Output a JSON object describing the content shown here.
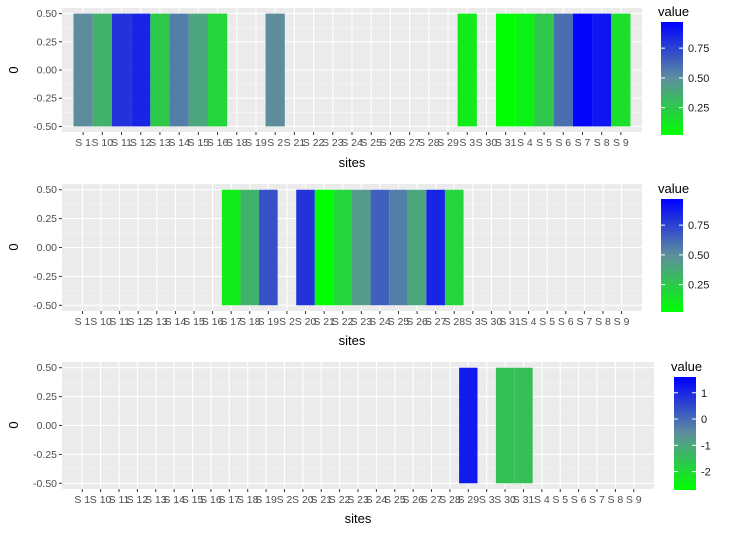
{
  "chart_data": [
    {
      "type": "heatmap",
      "xlabel": "sites",
      "ylabel": "0",
      "x": [
        "S 1",
        "S 10",
        "S 11",
        "S 12",
        "S 13",
        "S 14",
        "S 15",
        "S 16",
        "S 18",
        "S 19",
        "S 2",
        "S 21",
        "S 22",
        "S 23",
        "S 24",
        "S 25",
        "S 26",
        "S 27",
        "S 28",
        "S 29",
        "S 3",
        "S 30",
        "S 31",
        "S 4",
        "S 5",
        "S 6",
        "S 7",
        "S 8",
        "S 9"
      ],
      "x_tick_labels": [
        "S 1",
        "S 10",
        "S 11",
        "S 12",
        "S 13",
        "S 14",
        "S 15",
        "S 16",
        "S 18",
        "S 19",
        "S 2",
        "S 21",
        "S 22",
        "S 23",
        "S 24",
        "S 25",
        "S 26",
        "S 27",
        "S 28",
        "S 29",
        "S 3",
        "S 30",
        "S 31",
        "S 4",
        "S 5",
        "S 6",
        "S 7",
        "S 8",
        "S 9"
      ],
      "ylim": [
        -0.5,
        0.5
      ],
      "y_ticks": [
        "0.50",
        "0.25",
        "0.00",
        "-0.25",
        "-0.50"
      ],
      "values": [
        0.5,
        0.35,
        0.8,
        0.85,
        0.25,
        0.55,
        0.4,
        0.2,
        null,
        null,
        0.5,
        null,
        null,
        null,
        null,
        null,
        null,
        null,
        null,
        null,
        0.1,
        null,
        0.02,
        0.08,
        0.25,
        0.6,
        0.95,
        0.9,
        0.15
      ],
      "legend_title": "value",
      "legend_ticks": [
        "0.75",
        "0.50",
        "0.25"
      ],
      "color_low": "#00ff00",
      "color_high": "#0000ff"
    },
    {
      "type": "heatmap",
      "xlabel": "sites",
      "ylabel": "0",
      "x": [
        "S 1",
        "S 10",
        "S 11",
        "S 12",
        "S 13",
        "S 14",
        "S 15",
        "S 16",
        "S 17",
        "S 18",
        "S 19",
        "S 2",
        "S 20",
        "S 21",
        "S 22",
        "S 23",
        "S 24",
        "S 25",
        "S 26",
        "S 27",
        "S 28",
        "S 3",
        "S 30",
        "S 31",
        "S 4",
        "S 5",
        "S 6",
        "S 7",
        "S 8",
        "S 9"
      ],
      "x_tick_labels": [
        "S 1",
        "S 10",
        "S 11",
        "S 12",
        "S 13",
        "S 14",
        "S 15",
        "S 16",
        "S 17",
        "S 18",
        "S 19",
        "S 2",
        "S 20",
        "S 21",
        "S 22",
        "S 23",
        "S 24",
        "S 25",
        "S 26",
        "S 27",
        "S 28",
        "S 3",
        "S 30",
        "S 31",
        "S 4",
        "S 5",
        "S 6",
        "S 7",
        "S 8",
        "S 9"
      ],
      "ylim": [
        -0.5,
        0.5
      ],
      "y_ticks": [
        "0.50",
        "0.25",
        "0.00",
        "-0.25",
        "-0.50"
      ],
      "values": [
        null,
        null,
        null,
        null,
        null,
        null,
        null,
        null,
        0.1,
        0.35,
        0.7,
        null,
        0.8,
        0.02,
        0.2,
        0.45,
        0.65,
        0.55,
        0.4,
        0.85,
        0.2,
        null,
        null,
        null,
        null,
        null,
        null,
        null,
        null,
        null
      ],
      "legend_title": "value",
      "legend_ticks": [
        "0.75",
        "0.50",
        "0.25"
      ],
      "color_low": "#00ff00",
      "color_high": "#0000ff"
    },
    {
      "type": "heatmap",
      "xlabel": "sites",
      "ylabel": "0",
      "x": [
        "S 1",
        "S 10",
        "S 11",
        "S 12",
        "S 13",
        "S 14",
        "S 15",
        "S 16",
        "S 17",
        "S 18",
        "S 19",
        "S 2",
        "S 20",
        "S 21",
        "S 22",
        "S 23",
        "S 24",
        "S 25",
        "S 26",
        "S 27",
        "S 28",
        "S 29",
        "S 3",
        "S 30",
        "S 31",
        "S 4",
        "S 5",
        "S 6",
        "S 7",
        "S 8",
        "S 9"
      ],
      "x_tick_labels": [
        "S 1",
        "S 10",
        "S 11",
        "S 12",
        "S 13",
        "S 14",
        "S 15",
        "S 16",
        "S 17",
        "S 18",
        "S 19",
        "S 2",
        "S 20",
        "S 21",
        "S 22",
        "S 23",
        "S 24",
        "S 25",
        "S 26",
        "S 27",
        "S 28",
        "S 29",
        "S 3",
        "S 30",
        "S 31",
        "S 4",
        "S 5",
        "S 6",
        "S 7",
        "S 8",
        "S 9"
      ],
      "ylim": [
        -0.5,
        0.5
      ],
      "y_ticks": [
        "0.50",
        "0.25",
        "0.00",
        "-0.25",
        "-0.50"
      ],
      "values": [
        null,
        null,
        null,
        null,
        null,
        null,
        null,
        null,
        null,
        null,
        null,
        null,
        null,
        null,
        null,
        null,
        null,
        null,
        null,
        null,
        null,
        1.2,
        null,
        -1.5,
        -1.5,
        null,
        null,
        null,
        null,
        null,
        null
      ],
      "legend_title": "value",
      "legend_ticks": [
        "1",
        "0",
        "-1",
        "-2"
      ],
      "legend_tick_values": [
        1,
        0,
        -1,
        -2
      ],
      "legend_range": [
        -2.7,
        1.6
      ],
      "color_low": "#00ff00",
      "color_high": "#0000ff"
    }
  ]
}
